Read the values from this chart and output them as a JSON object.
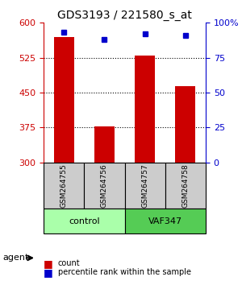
{
  "title": "GDS3193 / 221580_s_at",
  "samples": [
    "GSM264755",
    "GSM264756",
    "GSM264757",
    "GSM264758"
  ],
  "counts": [
    570,
    378,
    530,
    463
  ],
  "percentiles": [
    93,
    88,
    92,
    91
  ],
  "groups": [
    "control",
    "control",
    "VAF347",
    "VAF347"
  ],
  "ylim_left": [
    300,
    600
  ],
  "ylim_right": [
    0,
    100
  ],
  "yticks_left": [
    300,
    375,
    450,
    525,
    600
  ],
  "yticks_right": [
    0,
    25,
    50,
    75,
    100
  ],
  "bar_color": "#cc0000",
  "dot_color": "#0000cc",
  "control_color": "#aaffaa",
  "vaf_color": "#55cc55",
  "sample_box_color": "#cccccc",
  "grid_color": "#000000",
  "left_axis_color": "#cc0000",
  "right_axis_color": "#0000cc"
}
